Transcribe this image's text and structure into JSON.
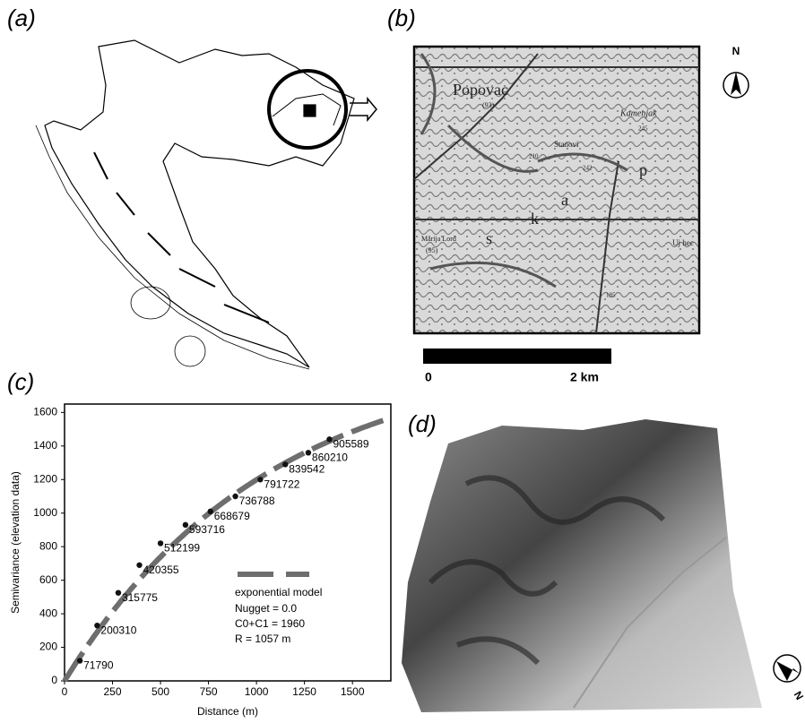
{
  "panel_labels": [
    "(a)",
    "(b)",
    "(c)",
    "(d)"
  ],
  "map_b": {
    "place_labels": [
      "Popovac",
      "(93)",
      "Kamenjak",
      "Stanovi",
      "Marija Lord",
      "(95)",
      "Uj hec",
      "245",
      "242",
      "210",
      "185"
    ],
    "letters": [
      "p",
      "a",
      "k",
      "s"
    ],
    "scale_labels": [
      "0",
      "2 km"
    ],
    "north": "N"
  },
  "map_d": {
    "north": "N"
  },
  "chart_data": {
    "type": "scatter",
    "x_label": "Distance (m)",
    "y_label": "Semivariance (elevation data)",
    "xlim": [
      0,
      1700
    ],
    "ylim": [
      0,
      1650
    ],
    "xticks": [
      0,
      250,
      500,
      750,
      1000,
      1250,
      1500
    ],
    "yticks": [
      0,
      200,
      400,
      600,
      800,
      1000,
      1200,
      1400,
      1600
    ],
    "x": [
      80,
      170,
      280,
      390,
      500,
      630,
      760,
      890,
      1020,
      1150,
      1270,
      1380
    ],
    "values": [
      120,
      330,
      525,
      690,
      820,
      930,
      1010,
      1100,
      1200,
      1290,
      1360,
      1440
    ],
    "point_labels": [
      "71790",
      "200310",
      "315775",
      "420355",
      "512199",
      "593716",
      "668679",
      "736788",
      "791722",
      "839542",
      "860210",
      "905589"
    ],
    "color": "#111111",
    "model": {
      "name": "exponential model",
      "color": "#6e6e6e",
      "nugget": 0.0,
      "sill": 1960,
      "range": 1057,
      "x_end": 1660,
      "annotations": [
        "Nugget = 0.0",
        "C0+C1 = 1960",
        "R = 1057 m"
      ]
    }
  }
}
